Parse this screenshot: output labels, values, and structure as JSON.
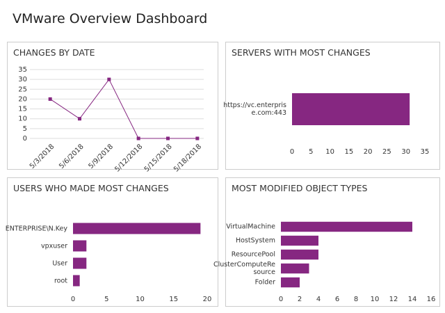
{
  "title": "VMware Overview Dashboard",
  "chart_data": [
    {
      "type": "line",
      "title": "CHANGES BY DATE",
      "categories": [
        "5/3/2018",
        "5/6/2018",
        "5/9/2018",
        "5/12/2018",
        "5/15/2018",
        "5/18/2018"
      ],
      "values": [
        20,
        10,
        30,
        0,
        0,
        0
      ],
      "color": "#862781",
      "ylim": [
        0,
        35
      ],
      "yticks": [
        0,
        5,
        10,
        15,
        20,
        25,
        30,
        35
      ],
      "grid": true
    },
    {
      "type": "bar",
      "orientation": "horizontal",
      "title": "SERVERS WITH MOST CHANGES",
      "categories": [
        "https://vc.enterprise.com:443"
      ],
      "values": [
        31
      ],
      "color": "#862781",
      "xlim": [
        0,
        35
      ],
      "xticks": [
        0,
        5,
        10,
        15,
        20,
        25,
        30,
        35
      ],
      "grid": false
    },
    {
      "type": "bar",
      "orientation": "horizontal",
      "title": "USERS WHO MADE MOST CHANGES",
      "categories": [
        "ENTERPRISE\\N.Key",
        "vpxuser",
        "User",
        "root"
      ],
      "values": [
        19,
        2,
        2,
        1
      ],
      "color": "#862781",
      "xlim": [
        0,
        20
      ],
      "xticks": [
        0,
        5,
        10,
        15,
        20
      ],
      "grid": false
    },
    {
      "type": "bar",
      "orientation": "horizontal",
      "title": "MOST MODIFIED OBJECT TYPES",
      "categories": [
        "VirtualMachine",
        "HostSystem",
        "ResourcePool",
        "ClusterComputeResource",
        "Folder"
      ],
      "values": [
        14,
        4,
        4,
        3,
        2
      ],
      "color": "#862781",
      "xlim": [
        0,
        16
      ],
      "xticks": [
        0,
        2,
        4,
        6,
        8,
        10,
        12,
        14,
        16
      ],
      "grid": false
    }
  ]
}
